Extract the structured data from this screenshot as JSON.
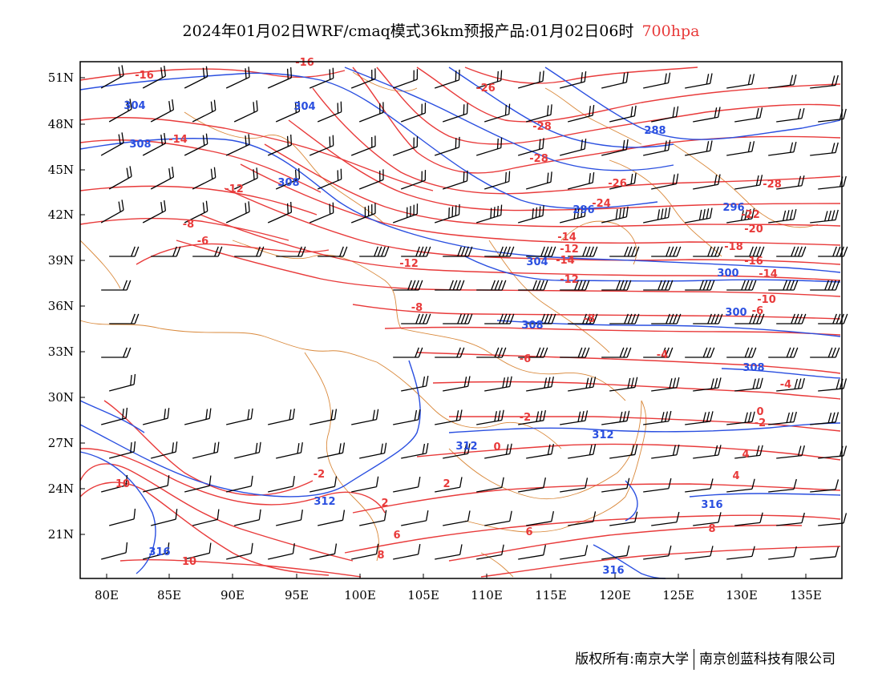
{
  "title": {
    "main": "2024年01月02日WRF/cmaq模式36km预报产品:01月02日06时",
    "level": "700hpa"
  },
  "colors": {
    "temperature": "#e83a3a",
    "height": "#2a4fe0",
    "border": "#d9883a",
    "wind": "#000000"
  },
  "axes": {
    "lat_labels": [
      "51N",
      "48N",
      "45N",
      "42N",
      "39N",
      "36N",
      "33N",
      "30N",
      "27N",
      "24N",
      "21N"
    ],
    "lon_labels": [
      "80E",
      "85E",
      "90E",
      "95E",
      "100E",
      "105E",
      "110E",
      "115E",
      "120E",
      "125E",
      "130E",
      "135E"
    ]
  },
  "contour_labels": {
    "temperature": [
      "-16",
      "-16",
      "-14",
      "-12",
      "-8",
      "-6",
      "-12",
      "-26",
      "-28",
      "-28",
      "-26",
      "-28",
      "-24",
      "-22",
      "-20",
      "-18",
      "-16",
      "-14",
      "-12",
      "-14",
      "-12",
      "-10",
      "-8",
      "-8",
      "-6",
      "-6",
      "-4",
      "-4",
      "-2",
      "-2",
      "0",
      "0",
      "-2",
      "2",
      "2",
      "4",
      "4",
      "6",
      "6",
      "8",
      "8",
      "10",
      "10",
      "-14"
    ],
    "height": [
      "304",
      "304",
      "308",
      "308",
      "288",
      "296",
      "296",
      "300",
      "304",
      "300",
      "308",
      "308",
      "312",
      "312",
      "312",
      "316",
      "316",
      "316"
    ]
  },
  "footer": {
    "copyright": "版权所有:南京大学",
    "company": "南京创蓝科技有限公司"
  }
}
